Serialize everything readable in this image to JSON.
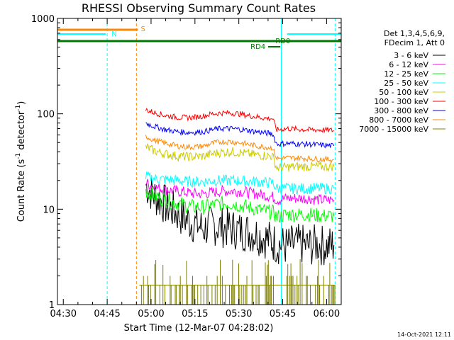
{
  "chart_data": {
    "type": "line",
    "title": "RHESSI Observing Summary Count Rates",
    "xlabel": "Start Time (12-Mar-07 04:28:02)",
    "ylabel_main": "Count Rate (s",
    "ylabel_sup1": "-1",
    "ylabel_mid": " detector",
    "ylabel_sup2": "-1",
    "ylabel_end": ")",
    "yscale": "log",
    "ylim": [
      1,
      1000
    ],
    "xlim_minutes": [
      0,
      97
    ],
    "x_ticks": [
      {
        "m": 2,
        "label": "04:30"
      },
      {
        "m": 17,
        "label": "04:45"
      },
      {
        "m": 32,
        "label": "05:00"
      },
      {
        "m": 47,
        "label": "05:15"
      },
      {
        "m": 62,
        "label": "05:30"
      },
      {
        "m": 77,
        "label": "05:45"
      },
      {
        "m": 92,
        "label": "06:00"
      }
    ],
    "y_ticks": [
      {
        "v": 1,
        "label": "1"
      },
      {
        "v": 10,
        "label": "10"
      },
      {
        "v": 100,
        "label": "100"
      },
      {
        "v": 1000,
        "label": "1000"
      }
    ],
    "legend": {
      "placement": "right",
      "header1": "Det 1,3,4,5,6,9,",
      "header2": "FDecim 1, Att 0"
    },
    "series": [
      {
        "name": "3 - 6 keV",
        "color": "#000000",
        "points": [
          [
            30.2,
            18
          ],
          [
            33,
            14
          ],
          [
            37,
            11
          ],
          [
            41,
            9
          ],
          [
            44,
            7.8
          ],
          [
            47,
            7
          ],
          [
            50,
            6.3
          ],
          [
            53,
            6.8
          ],
          [
            56,
            6.5
          ],
          [
            59,
            6.3
          ],
          [
            62,
            6
          ],
          [
            65,
            5.8
          ],
          [
            68,
            5.5
          ],
          [
            71,
            5
          ],
          [
            73.5,
            4.6
          ],
          [
            75,
            4.3
          ],
          [
            78.5,
            4.1
          ],
          [
            80,
            4.2
          ],
          [
            83,
            4.3
          ],
          [
            86,
            4.1
          ],
          [
            89,
            4.3
          ],
          [
            92,
            4.1
          ],
          [
            94.5,
            4.2
          ]
        ]
      },
      {
        "name": "6 - 12 keV",
        "color": "#ff00ff",
        "points": [
          [
            30.2,
            19
          ],
          [
            33,
            17
          ],
          [
            37,
            16
          ],
          [
            41,
            15.5
          ],
          [
            44,
            15
          ],
          [
            47,
            14.5
          ],
          [
            50,
            14.5
          ],
          [
            53,
            15
          ],
          [
            56,
            15.5
          ],
          [
            59,
            15.5
          ],
          [
            62,
            15.5
          ],
          [
            65,
            15
          ],
          [
            68,
            14.5
          ],
          [
            71,
            14
          ],
          [
            73.5,
            13.5
          ],
          [
            75,
            12.5
          ],
          [
            78.5,
            13
          ],
          [
            82,
            13
          ],
          [
            86,
            13
          ],
          [
            90,
            12.5
          ],
          [
            94.5,
            12.5
          ]
        ]
      },
      {
        "name": "12 - 25 keV",
        "color": "#00ff00",
        "points": [
          [
            30.2,
            15.5
          ],
          [
            33,
            14
          ],
          [
            37,
            12.5
          ],
          [
            41,
            11.5
          ],
          [
            44,
            11
          ],
          [
            47,
            10.5
          ],
          [
            50,
            10.5
          ],
          [
            53,
            11
          ],
          [
            56,
            11.5
          ],
          [
            59,
            11.5
          ],
          [
            62,
            11
          ],
          [
            65,
            10.5
          ],
          [
            68,
            10
          ],
          [
            71,
            9.5
          ],
          [
            73.5,
            9.3
          ],
          [
            75,
            8.3
          ],
          [
            78.5,
            8.8
          ],
          [
            82,
            8.8
          ],
          [
            86,
            8.8
          ],
          [
            90,
            8.5
          ],
          [
            94.5,
            8.5
          ]
        ]
      },
      {
        "name": "25 - 50 keV",
        "color": "#00ffff",
        "points": [
          [
            30.2,
            22
          ],
          [
            33,
            21
          ],
          [
            37,
            20.5
          ],
          [
            41,
            20
          ],
          [
            44,
            19.5
          ],
          [
            47,
            19.5
          ],
          [
            50,
            19.5
          ],
          [
            53,
            20
          ],
          [
            56,
            20
          ],
          [
            59,
            20
          ],
          [
            62,
            20
          ],
          [
            65,
            19.5
          ],
          [
            68,
            19.5
          ],
          [
            71,
            19
          ],
          [
            73.5,
            19
          ],
          [
            75,
            16.5
          ],
          [
            78.5,
            16.5
          ],
          [
            82,
            16.5
          ],
          [
            86,
            16.5
          ],
          [
            90,
            16.5
          ],
          [
            94.5,
            16.5
          ]
        ]
      },
      {
        "name": "50 - 100 keV",
        "color": "#cccc00",
        "points": [
          [
            30.2,
            45
          ],
          [
            33,
            41
          ],
          [
            37,
            38
          ],
          [
            41,
            36
          ],
          [
            44,
            35.5
          ],
          [
            47,
            35.5
          ],
          [
            50,
            36
          ],
          [
            53,
            38
          ],
          [
            56,
            39.5
          ],
          [
            59,
            40
          ],
          [
            62,
            39.5
          ],
          [
            65,
            38
          ],
          [
            68,
            37
          ],
          [
            71,
            36.5
          ],
          [
            73.5,
            36
          ],
          [
            75,
            27
          ],
          [
            78.5,
            27.5
          ],
          [
            82,
            28
          ],
          [
            86,
            28
          ],
          [
            90,
            28
          ],
          [
            94.5,
            28
          ]
        ]
      },
      {
        "name": "100 - 300 keV",
        "color": "#ff0000",
        "points": [
          [
            30.2,
            110
          ],
          [
            33,
            103
          ],
          [
            37,
            96
          ],
          [
            41,
            92
          ],
          [
            44,
            91
          ],
          [
            47,
            92
          ],
          [
            50,
            95
          ],
          [
            53,
            100
          ],
          [
            56,
            102
          ],
          [
            59,
            102
          ],
          [
            62,
            100
          ],
          [
            65,
            96
          ],
          [
            68,
            93
          ],
          [
            71,
            90
          ],
          [
            73.5,
            89
          ],
          [
            75,
            68
          ],
          [
            78.5,
            70
          ],
          [
            82,
            69
          ],
          [
            86,
            68
          ],
          [
            90,
            68
          ],
          [
            94.5,
            67
          ]
        ]
      },
      {
        "name": "300 - 800 keV",
        "color": "#0000ff",
        "points": [
          [
            30.2,
            80
          ],
          [
            33,
            74
          ],
          [
            37,
            68
          ],
          [
            41,
            65
          ],
          [
            44,
            64
          ],
          [
            47,
            64
          ],
          [
            50,
            65
          ],
          [
            53,
            68
          ],
          [
            56,
            70
          ],
          [
            59,
            70
          ],
          [
            62,
            69
          ],
          [
            65,
            67
          ],
          [
            68,
            65
          ],
          [
            71,
            63
          ],
          [
            73.5,
            62
          ],
          [
            75,
            48
          ],
          [
            78.5,
            49
          ],
          [
            82,
            48.5
          ],
          [
            86,
            48
          ],
          [
            90,
            47
          ],
          [
            94.5,
            46
          ]
        ]
      },
      {
        "name": "800 - 7000 keV",
        "color": "#ff8800",
        "points": [
          [
            30.2,
            58
          ],
          [
            33,
            53
          ],
          [
            37,
            49
          ],
          [
            41,
            46
          ],
          [
            44,
            45
          ],
          [
            47,
            45
          ],
          [
            50,
            46
          ],
          [
            53,
            49
          ],
          [
            56,
            51
          ],
          [
            59,
            51
          ],
          [
            62,
            50
          ],
          [
            65,
            48
          ],
          [
            68,
            46
          ],
          [
            71,
            45
          ],
          [
            73.5,
            44
          ],
          [
            75,
            34
          ],
          [
            78.5,
            34.5
          ],
          [
            82,
            34.5
          ],
          [
            86,
            34
          ],
          [
            90,
            33.5
          ],
          [
            94.5,
            33
          ]
        ]
      },
      {
        "name": "7000 - 15000 keV",
        "color": "#808000",
        "points": []
      }
    ],
    "annotations": {
      "S": "S",
      "N": "N",
      "RD4": "RD4",
      "RD0": "RD0",
      "timestamp": "14-Oct-2021 12:11"
    }
  }
}
